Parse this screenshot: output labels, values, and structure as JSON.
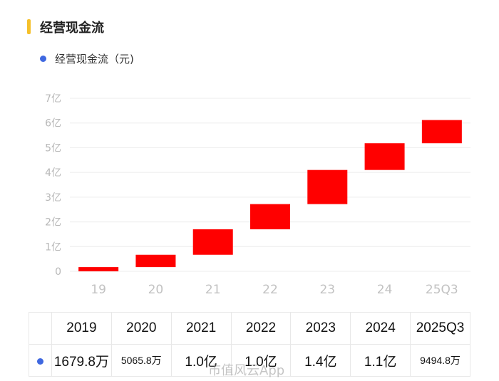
{
  "header": {
    "title": "经营现金流"
  },
  "legend": {
    "label": "经营现金流（元)",
    "dot_color": "#3f68e0"
  },
  "colors": {
    "bar": "#ff0000",
    "accent": "#f5c02a",
    "series_dot": "#3f68e0"
  },
  "chart_data": {
    "type": "waterfall",
    "title": "",
    "xlabel": "",
    "ylabel": "",
    "ylim": [
      0,
      7
    ],
    "y_ticks": [
      "0",
      "1亿",
      "2亿",
      "3亿",
      "4亿",
      "5亿",
      "6亿",
      "7亿"
    ],
    "categories": [
      "19",
      "20",
      "21",
      "22",
      "23",
      "24",
      "25Q3"
    ],
    "series": [
      {
        "name": "经营现金流（元)",
        "bars": [
          {
            "start": 0.0,
            "end": 0.17
          },
          {
            "start": 0.17,
            "end": 0.67
          },
          {
            "start": 0.67,
            "end": 1.7
          },
          {
            "start": 1.7,
            "end": 2.72
          },
          {
            "start": 2.72,
            "end": 4.1
          },
          {
            "start": 4.1,
            "end": 5.18
          },
          {
            "start": 5.18,
            "end": 6.12
          }
        ]
      }
    ],
    "grid": true
  },
  "table": {
    "years": [
      "2019",
      "2020",
      "2021",
      "2022",
      "2023",
      "2024",
      "2025Q3"
    ],
    "values": [
      "1679.8万",
      "5065.8万",
      "1.0亿",
      "1.0亿",
      "1.4亿",
      "1.1亿",
      "9494.8万"
    ]
  },
  "watermark": "市值风云App"
}
